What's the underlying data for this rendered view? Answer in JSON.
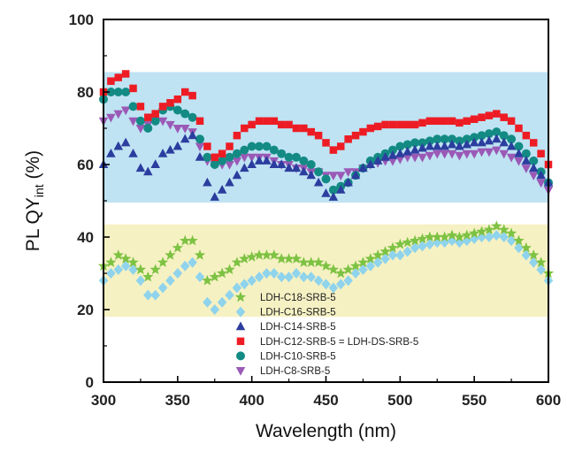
{
  "chart_data": {
    "type": "scatter",
    "xlabel": "Wavelength (nm)",
    "ylabel": {
      "main": "PL QY",
      "sub": "int",
      "unit": " (%)"
    },
    "xlim": [
      300,
      600
    ],
    "ylim": [
      0,
      100
    ],
    "xticks": [
      "300",
      "350",
      "400",
      "450",
      "500",
      "550",
      "600"
    ],
    "yticks": [
      "0",
      "20",
      "40",
      "60",
      "80",
      "100"
    ],
    "grid": false,
    "legend_position": "lower-center",
    "bands": [
      {
        "name": "high-band",
        "ymin": 49.5,
        "ymax": 85.5,
        "color": "#bfe3f3"
      },
      {
        "name": "low-band",
        "ymin": 18,
        "ymax": 43.5,
        "color": "#f6f1c3"
      }
    ],
    "series": [
      {
        "name": "LDH-C18-SRB-5",
        "marker": "star",
        "color": "#7dc242",
        "x": [
          300,
          305,
          310,
          315,
          320,
          325,
          330,
          335,
          340,
          345,
          350,
          355,
          360,
          365,
          370,
          375,
          380,
          385,
          390,
          395,
          400,
          405,
          410,
          415,
          420,
          425,
          430,
          435,
          440,
          445,
          450,
          455,
          460,
          465,
          470,
          475,
          480,
          485,
          490,
          495,
          500,
          505,
          510,
          515,
          520,
          525,
          530,
          535,
          540,
          545,
          550,
          555,
          560,
          565,
          570,
          575,
          580,
          585,
          590,
          595,
          600
        ],
        "y": [
          32,
          33,
          35,
          34,
          33,
          31,
          29,
          31,
          33,
          35,
          37,
          39,
          39,
          35,
          28,
          29,
          30,
          31,
          33,
          34,
          34.5,
          35,
          35,
          35,
          34,
          34,
          34,
          33,
          33,
          33,
          32,
          31,
          30,
          31,
          32,
          33,
          34,
          35,
          36,
          37,
          38,
          38.5,
          39,
          39.5,
          40,
          40,
          40,
          40.5,
          40,
          40.5,
          41,
          41.5,
          42,
          43,
          42,
          41,
          39,
          37,
          35,
          33,
          30
        ]
      },
      {
        "name": "LDH-C16-SRB-5",
        "marker": "diamond",
        "color": "#8fd3ec",
        "x": [
          300,
          305,
          310,
          315,
          320,
          325,
          330,
          335,
          340,
          345,
          350,
          355,
          360,
          365,
          370,
          375,
          380,
          385,
          390,
          395,
          400,
          405,
          410,
          415,
          420,
          425,
          430,
          435,
          440,
          445,
          450,
          455,
          460,
          465,
          470,
          475,
          480,
          485,
          490,
          495,
          500,
          505,
          510,
          515,
          520,
          525,
          530,
          535,
          540,
          545,
          550,
          555,
          560,
          565,
          570,
          575,
          580,
          585,
          590,
          595,
          600
        ],
        "y": [
          28,
          30,
          31,
          32,
          31,
          28,
          24,
          24,
          26,
          28,
          30,
          32,
          33,
          29,
          22,
          20,
          22,
          24,
          26,
          27,
          28,
          29,
          30,
          30,
          29,
          29,
          30,
          29,
          29,
          28,
          27,
          26,
          27,
          28,
          30,
          31,
          32,
          33,
          34,
          35,
          35,
          36,
          37,
          37.5,
          38,
          38.5,
          38.5,
          39,
          38.5,
          39,
          39.5,
          40,
          40,
          40.5,
          40,
          39,
          37,
          35,
          33,
          31,
          28
        ]
      },
      {
        "name": "LDH-C14-SRB-5",
        "marker": "triangle-up",
        "color": "#2b3d9e",
        "x": [
          300,
          305,
          310,
          315,
          320,
          325,
          330,
          335,
          340,
          345,
          350,
          355,
          360,
          365,
          370,
          375,
          380,
          385,
          390,
          395,
          400,
          405,
          410,
          415,
          420,
          425,
          430,
          435,
          440,
          445,
          450,
          455,
          460,
          465,
          470,
          475,
          480,
          485,
          490,
          495,
          500,
          505,
          510,
          515,
          520,
          525,
          530,
          535,
          540,
          545,
          550,
          555,
          560,
          565,
          570,
          575,
          580,
          585,
          590,
          595,
          600
        ],
        "y": [
          60,
          63,
          65,
          66,
          63,
          59,
          58,
          60,
          63,
          64,
          65,
          67,
          68,
          62,
          55,
          51,
          53,
          55,
          57,
          59,
          60,
          61,
          61,
          60,
          60,
          59,
          59,
          58,
          57,
          55,
          52,
          51,
          53,
          55,
          57,
          59,
          60,
          61,
          62,
          62.5,
          63,
          63.5,
          64,
          64.5,
          65,
          65,
          65,
          65.5,
          65,
          65.5,
          66,
          66,
          66.5,
          67,
          66,
          65,
          63,
          61,
          59,
          57,
          55
        ]
      },
      {
        "name": "LDH-C12-SRB-5 = LDH-DS-SRB-5",
        "marker": "square",
        "color": "#ed1c24",
        "x": [
          300,
          305,
          310,
          315,
          320,
          325,
          330,
          335,
          340,
          345,
          350,
          355,
          360,
          365,
          370,
          375,
          380,
          385,
          390,
          395,
          400,
          405,
          410,
          415,
          420,
          425,
          430,
          435,
          440,
          445,
          450,
          455,
          460,
          465,
          470,
          475,
          480,
          485,
          490,
          495,
          500,
          505,
          510,
          515,
          520,
          525,
          530,
          535,
          540,
          545,
          550,
          555,
          560,
          565,
          570,
          575,
          580,
          585,
          590,
          595,
          600
        ],
        "y": [
          80,
          83,
          84,
          85,
          81,
          76,
          73,
          74,
          76,
          77,
          78,
          80,
          79,
          72,
          65,
          62,
          63,
          65,
          68,
          70,
          71,
          72,
          72,
          72,
          71,
          71,
          70,
          70,
          69,
          68,
          66,
          64,
          65,
          67,
          68,
          69,
          70,
          70.5,
          71,
          71,
          71,
          71,
          71,
          71.5,
          72,
          72,
          72,
          72,
          71.5,
          72,
          72.5,
          73,
          73.5,
          74,
          73,
          72,
          70,
          68,
          66,
          63,
          60
        ]
      },
      {
        "name": "LDH-C10-SRB-5",
        "marker": "circle",
        "color": "#138b84",
        "x": [
          300,
          305,
          310,
          315,
          320,
          325,
          330,
          335,
          340,
          345,
          350,
          355,
          360,
          365,
          370,
          375,
          380,
          385,
          390,
          395,
          400,
          405,
          410,
          415,
          420,
          425,
          430,
          435,
          440,
          445,
          450,
          455,
          460,
          465,
          470,
          475,
          480,
          485,
          490,
          495,
          500,
          505,
          510,
          515,
          520,
          525,
          530,
          535,
          540,
          545,
          550,
          555,
          560,
          565,
          570,
          575,
          580,
          585,
          590,
          595,
          600
        ],
        "y": [
          78,
          80,
          80,
          80,
          76,
          72,
          70,
          72,
          75,
          76,
          75,
          74,
          73,
          67,
          62,
          60,
          61,
          62,
          63,
          64,
          65,
          65,
          65,
          64,
          63,
          62,
          62,
          61,
          60,
          58,
          56,
          53,
          54,
          55,
          57,
          59,
          61,
          62,
          63,
          64,
          65,
          65.5,
          66,
          66,
          66.5,
          67,
          67,
          67,
          66.5,
          67,
          67.5,
          68,
          68.5,
          69,
          68,
          67,
          65,
          63,
          61,
          58,
          55
        ]
      },
      {
        "name": "LDH-C8-SRB-5",
        "marker": "triangle-down",
        "color": "#9b59b6",
        "x": [
          300,
          305,
          310,
          315,
          320,
          325,
          330,
          335,
          340,
          345,
          350,
          355,
          360,
          365,
          370,
          375,
          380,
          385,
          390,
          395,
          400,
          405,
          410,
          415,
          420,
          425,
          430,
          435,
          440,
          445,
          450,
          455,
          460,
          465,
          470,
          475,
          480,
          485,
          490,
          495,
          500,
          505,
          510,
          515,
          520,
          525,
          530,
          535,
          540,
          545,
          550,
          555,
          560,
          565,
          570,
          575,
          580,
          585,
          590,
          595,
          600
        ],
        "y": [
          72,
          73,
          74,
          75,
          72,
          70,
          71,
          72,
          72,
          71,
          70,
          70,
          69,
          65,
          61,
          60,
          60,
          60,
          61,
          62,
          62,
          62,
          62,
          61,
          60,
          60,
          59,
          59,
          58,
          58,
          57,
          57,
          57,
          58,
          58,
          59,
          60,
          60.5,
          61,
          61,
          61.5,
          62,
          62,
          62,
          62.5,
          63,
          63,
          63,
          62.5,
          63,
          63,
          63.5,
          63.5,
          64,
          63,
          62,
          61,
          59,
          57,
          55,
          53
        ]
      }
    ]
  }
}
